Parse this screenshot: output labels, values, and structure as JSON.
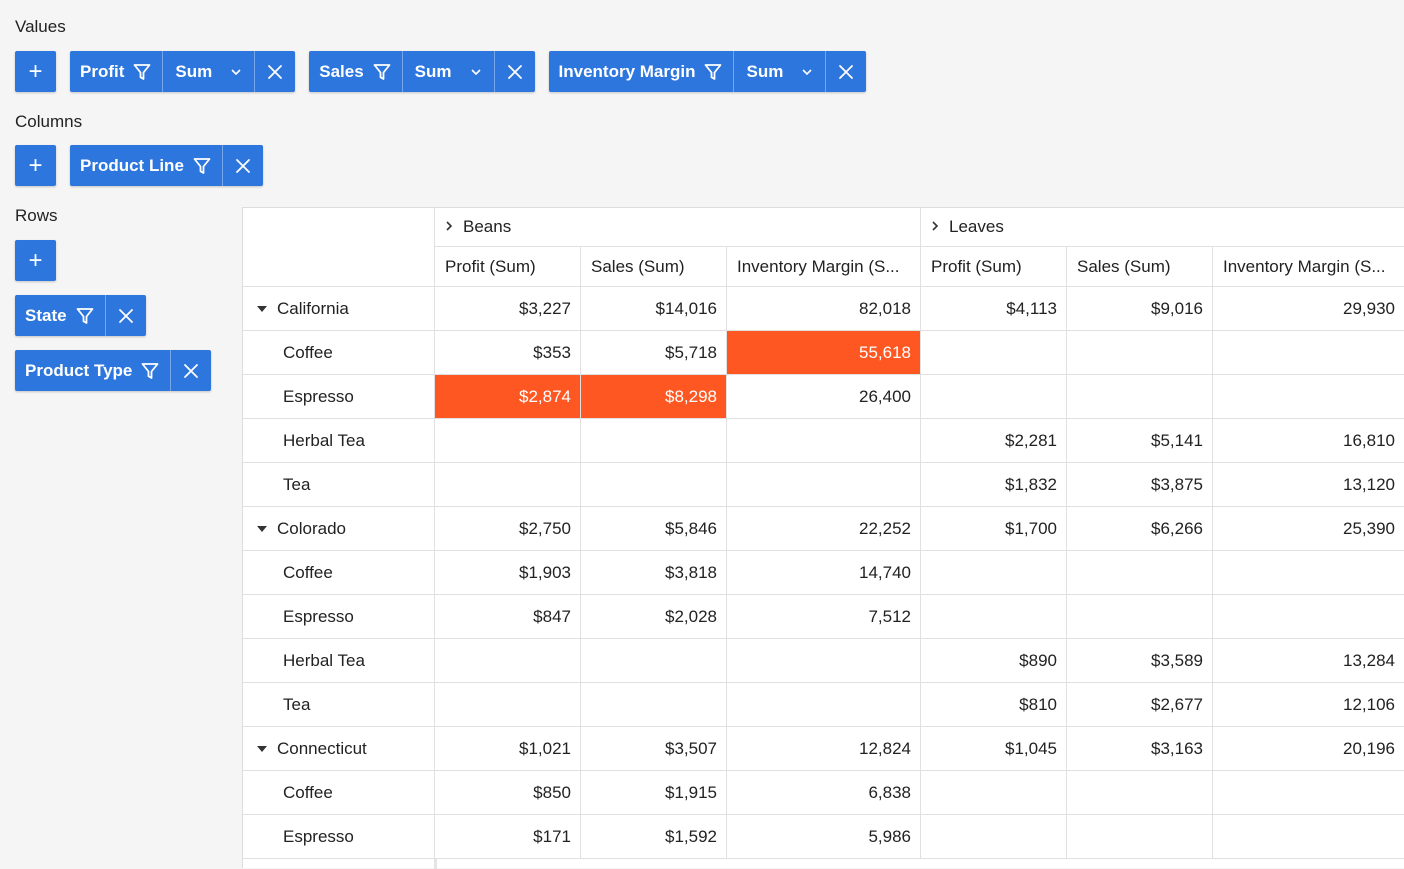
{
  "values_label": "Values",
  "columns_label": "Columns",
  "rows_label": "Rows",
  "add_glyph": "+",
  "values_chips": [
    {
      "label": "Profit",
      "aggregation": "Sum"
    },
    {
      "label": "Sales",
      "aggregation": "Sum"
    },
    {
      "label": "Inventory Margin",
      "aggregation": "Sum"
    }
  ],
  "columns_chips": [
    {
      "label": "Product Line"
    }
  ],
  "rows_chips": [
    {
      "label": "State"
    },
    {
      "label": "Product Type"
    }
  ],
  "colors": {
    "accent": "#2d76de",
    "highlight": "#fe5722"
  },
  "grid": {
    "column_groups": [
      {
        "label": "Beans"
      },
      {
        "label": "Leaves"
      }
    ],
    "measure_headers": [
      "Profit (Sum)",
      "Sales (Sum)",
      "Inventory Margin (S...",
      "Profit (Sum)",
      "Sales (Sum)",
      "Inventory Margin (S..."
    ],
    "rows": [
      {
        "label": "California",
        "group": true,
        "cells": [
          "$3,227",
          "$14,016",
          "82,018",
          "$4,113",
          "$9,016",
          "29,930"
        ]
      },
      {
        "label": "Coffee",
        "cells": [
          "$353",
          "$5,718",
          "55,618",
          "",
          "",
          ""
        ],
        "highlight": [
          false,
          false,
          true,
          false,
          false,
          false
        ]
      },
      {
        "label": "Espresso",
        "cells": [
          "$2,874",
          "$8,298",
          "26,400",
          "",
          "",
          ""
        ],
        "highlight": [
          true,
          true,
          false,
          false,
          false,
          false
        ]
      },
      {
        "label": "Herbal Tea",
        "cells": [
          "",
          "",
          "",
          "$2,281",
          "$5,141",
          "16,810"
        ]
      },
      {
        "label": "Tea",
        "cells": [
          "",
          "",
          "",
          "$1,832",
          "$3,875",
          "13,120"
        ]
      },
      {
        "label": "Colorado",
        "group": true,
        "cells": [
          "$2,750",
          "$5,846",
          "22,252",
          "$1,700",
          "$6,266",
          "25,390"
        ]
      },
      {
        "label": "Coffee",
        "cells": [
          "$1,903",
          "$3,818",
          "14,740",
          "",
          "",
          ""
        ]
      },
      {
        "label": "Espresso",
        "cells": [
          "$847",
          "$2,028",
          "7,512",
          "",
          "",
          ""
        ]
      },
      {
        "label": "Herbal Tea",
        "cells": [
          "",
          "",
          "",
          "$890",
          "$3,589",
          "13,284"
        ]
      },
      {
        "label": "Tea",
        "cells": [
          "",
          "",
          "",
          "$810",
          "$2,677",
          "12,106"
        ]
      },
      {
        "label": "Connecticut",
        "group": true,
        "cells": [
          "$1,021",
          "$3,507",
          "12,824",
          "$1,045",
          "$3,163",
          "20,196"
        ]
      },
      {
        "label": "Coffee",
        "cells": [
          "$850",
          "$1,915",
          "6,838",
          "",
          "",
          ""
        ]
      },
      {
        "label": "Espresso",
        "cells": [
          "$171",
          "$1,592",
          "5,986",
          "",
          "",
          ""
        ]
      }
    ]
  }
}
